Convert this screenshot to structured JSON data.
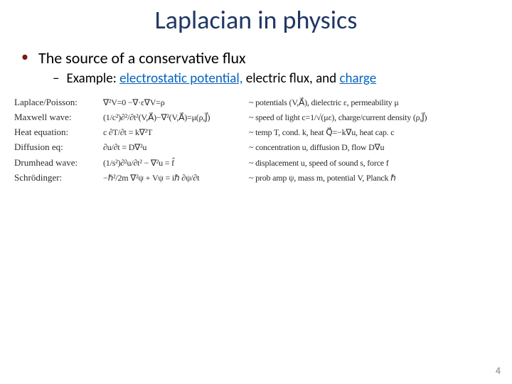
{
  "title": "Laplacian in physics",
  "bullet1": "The source of a conservative flux",
  "bullet2_pre": "Example: ",
  "bullet2_link1": "electrostatic potential,",
  "bullet2_mid": "  electric flux",
  "bullet2_post": ", and ",
  "bullet2_link2": "charge",
  "rows": [
    {
      "name": "Laplace/Poisson:",
      "eq": "∇²V=0   −∇·ε∇V=ρ",
      "desc": "~ potentials (V,A⃗), dielectric ε, permeability μ"
    },
    {
      "name": "Maxwell wave:",
      "eq": "(1/c²)∂²/∂t²(V,A⃗)−∇²(V,A⃗)=μ(ρ,J⃗)",
      "desc": "~ speed of light c=1/√(με), charge/current density (ρ,J⃗)"
    },
    {
      "name": "Heat equation:",
      "eq": "c ∂T/∂t = k∇²T",
      "desc": "~ temp T, cond. k, heat Q⃗=−k∇u, heat cap. c"
    },
    {
      "name": "Diffusion eq:",
      "eq": "∂u/∂t = D∇²u",
      "desc": "~ concentration u, diffusion D, flow D∇u"
    },
    {
      "name": "Drumhead wave:",
      "eq": "(1/s²)∂²u/∂t² − ∇²u = f̂",
      "desc": "~ displacement u, speed of sound s, force f"
    },
    {
      "name": "Schrödinger:",
      "eq": "−ℏ²/2m ∇²ψ + Vψ = iℏ ∂ψ/∂t",
      "desc": "~ prob amp ψ, mass m, potential V, Planck ℏ"
    }
  ],
  "pagenum": "4",
  "colors": {
    "title": "#203864",
    "bullet_dot": "#7e1810",
    "link": "#0563c1",
    "page": "#7f7f7f",
    "handwriting": "#2a2a2a",
    "bg": "#ffffff"
  }
}
